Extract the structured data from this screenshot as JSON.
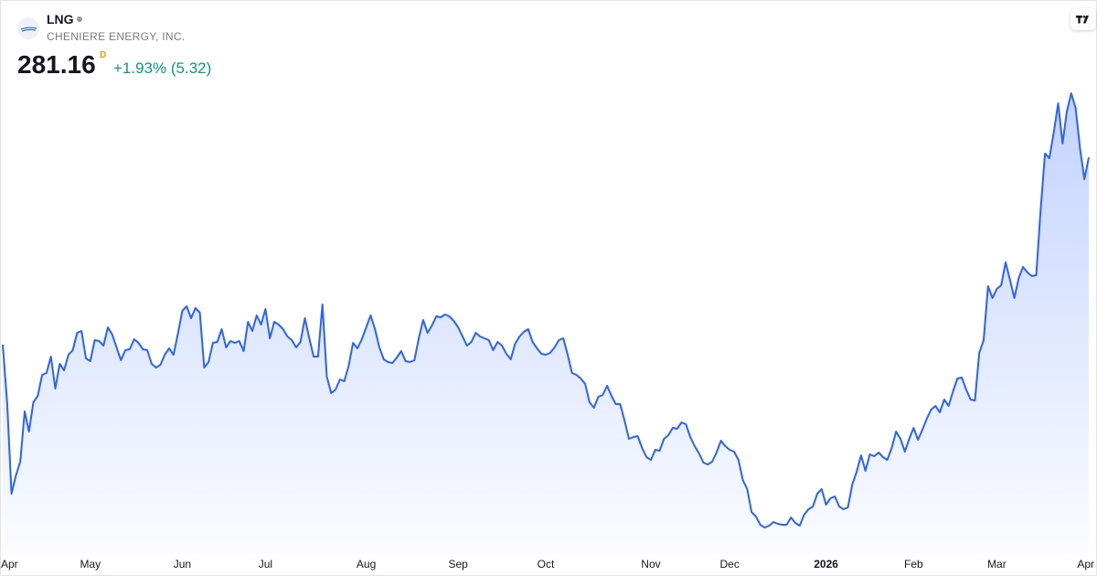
{
  "header": {
    "symbol": "LNG",
    "company": "CHENIERE ENERGY, INC.",
    "price": "281.16",
    "price_flag": "D",
    "change": "+1.93% (5.32)"
  },
  "chart_data": {
    "type": "area",
    "color": "#2962ff",
    "ylim": [
      190,
      300
    ],
    "xticks": [
      {
        "value": 2,
        "label": "Apr"
      },
      {
        "value": 20,
        "label": "May"
      },
      {
        "value": 41,
        "label": "Jun"
      },
      {
        "value": 60,
        "label": "Jul"
      },
      {
        "value": 83,
        "label": "Aug"
      },
      {
        "value": 104,
        "label": "Sep"
      },
      {
        "value": 124,
        "label": "Oct"
      },
      {
        "value": 148,
        "label": "Nov"
      },
      {
        "value": 166,
        "label": "Dec"
      },
      {
        "value": 188,
        "label": "2026"
      },
      {
        "value": 208,
        "label": "Feb"
      },
      {
        "value": 227,
        "label": "Mar"
      },
      {
        "value": 249,
        "label": "Apr"
      }
    ],
    "values": [
      240.2,
      227.6,
      207.6,
      211.6,
      214.6,
      225.6,
      221.2,
      227.6,
      229.0,
      233.6,
      234.0,
      237.6,
      230.6,
      236.0,
      234.6,
      238.0,
      239.0,
      242.8,
      243.2,
      237.2,
      236.6,
      241.2,
      241.0,
      240.0,
      244.0,
      242.4,
      239.6,
      236.8,
      239.0,
      239.2,
      241.4,
      240.6,
      239.2,
      239.0,
      236.0,
      235.2,
      235.8,
      238.0,
      239.4,
      238.0,
      242.6,
      247.6,
      248.6,
      246.0,
      248.2,
      247.2,
      235.2,
      236.4,
      240.6,
      240.8,
      243.6,
      239.6,
      241.0,
      240.6,
      241.0,
      238.8,
      245.2,
      243.2,
      246.6,
      244.6,
      248.0,
      241.6,
      245.2,
      244.6,
      243.6,
      242.0,
      241.2,
      239.6,
      240.8,
      246.0,
      241.6,
      237.6,
      237.6,
      249.0,
      233.2,
      229.6,
      230.4,
      232.6,
      232.2,
      235.6,
      240.6,
      239.4,
      241.4,
      244.0,
      246.6,
      243.6,
      239.6,
      237.0,
      236.4,
      236.2,
      237.4,
      238.8,
      236.6,
      236.4,
      236.8,
      241.6,
      245.6,
      242.8,
      244.4,
      246.4,
      246.2,
      246.8,
      246.4,
      245.4,
      244.0,
      242.0,
      240.0,
      240.8,
      242.8,
      242.0,
      241.6,
      241.2,
      239.0,
      240.8,
      240.0,
      238.2,
      237.0,
      240.4,
      242.0,
      243.0,
      243.6,
      240.8,
      239.4,
      238.2,
      238.0,
      238.4,
      239.6,
      241.2,
      241.6,
      238.0,
      234.0,
      233.6,
      232.8,
      231.6,
      227.6,
      226.4,
      228.8,
      229.2,
      231.2,
      229.0,
      227.2,
      227.2,
      223.6,
      219.6,
      220.0,
      220.2,
      217.6,
      215.6,
      215.0,
      217.2,
      217.0,
      219.6,
      220.4,
      222.0,
      221.8,
      223.2,
      222.8,
      220.0,
      218.0,
      216.4,
      214.4,
      214.0,
      214.6,
      216.6,
      219.2,
      218.0,
      217.2,
      216.8,
      215.0,
      210.6,
      208.6,
      203.6,
      202.6,
      200.8,
      200.2,
      200.6,
      201.4,
      201.0,
      200.8,
      200.8,
      202.4,
      201.2,
      200.6,
      203.0,
      204.2,
      204.8,
      207.6,
      208.6,
      205.2,
      206.6,
      207.0,
      204.8,
      204.2,
      204.6,
      209.6,
      212.4,
      216.0,
      212.6,
      216.2,
      215.8,
      216.6,
      215.6,
      215.0,
      217.6,
      221.2,
      219.6,
      216.8,
      219.6,
      222.0,
      219.4,
      221.6,
      224.0,
      226.0,
      226.8,
      225.4,
      228.2,
      226.8,
      230.0,
      232.8,
      233.0,
      230.4,
      228.2,
      228.0,
      238.4,
      241.2,
      253.0,
      250.4,
      252.4,
      253.2,
      258.2,
      254.4,
      250.4,
      254.8,
      257.2,
      256.0,
      255.2,
      255.4,
      269.6,
      282.0,
      281.0,
      286.6,
      293.0,
      284.2,
      291.2,
      295.2,
      292.0,
      283.2,
      276.4,
      281.16
    ]
  }
}
